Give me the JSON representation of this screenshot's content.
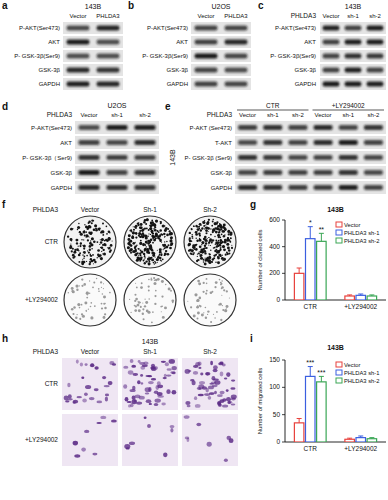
{
  "panels": {
    "a": {
      "letter": "a",
      "cell_line": "143B",
      "lanes": [
        "Vector",
        "PHLDA3"
      ],
      "rows": [
        "P-AKT(Ser473)",
        "AKT",
        "P- GSK-3β(Ser9)",
        "GSK-3β",
        "GAPDH"
      ]
    },
    "b": {
      "letter": "b",
      "cell_line": "U2OS",
      "lanes": [
        "Vector",
        "PHLDA3"
      ],
      "rows": [
        "P-AKT(Ser473)",
        "AKT",
        "P- GSK-3β(Ser9)",
        "GSK-3β",
        "GAPDH"
      ]
    },
    "c": {
      "letter": "c",
      "group": "PHLDA3",
      "cell_line": "143B",
      "lanes": [
        "Vector",
        "sh-1",
        "sh-2"
      ],
      "rows": [
        "P-AKT(Ser473)",
        "AKT",
        "P- GSK-3β(Ser9)",
        "GSK-3β",
        "GAPDH"
      ]
    },
    "d": {
      "letter": "d",
      "group": "PHLDA3",
      "cell_line": "U2OS",
      "lanes": [
        "Vector",
        "sh-1",
        "sh-2"
      ],
      "rows": [
        "P-AKT(Ser473)",
        "AKT",
        "P- GSK-3β（Ser9)",
        "GSK-3β",
        "GAPDH"
      ]
    },
    "e": {
      "letter": "e",
      "group": "PHLDA3",
      "cell_line": "143B",
      "conditions": [
        "CTR",
        "+LY294002"
      ],
      "lanes": [
        "Vector",
        "sh-1",
        "sh-2",
        "Vector",
        "sh-1",
        "sh-2"
      ],
      "rows": [
        "P-AKT (Ser473)",
        "T-AKT",
        "P- GSK-3β (Ser9)",
        "GSK-3β",
        "GAPDH"
      ]
    },
    "f": {
      "letter": "f",
      "group": "PHLDA3",
      "lanes": [
        "Vector",
        "Sh-1",
        "Sh-2"
      ],
      "conditions": [
        "CTR",
        "+LY294002"
      ]
    },
    "h": {
      "letter": "h",
      "group": "PHLDA3",
      "cell_line": "143B",
      "lanes": [
        "Vector",
        "Sh-1",
        "Sh-2"
      ],
      "conditions": [
        "CTR",
        "+LY294002"
      ]
    }
  },
  "chart_data": [
    {
      "panel_label": "g",
      "type": "bar",
      "title": "143B",
      "y_label": "Number of cloned cells",
      "categories": [
        "CTR",
        "+LY294002"
      ],
      "series": [
        {
          "name": "Vector",
          "color": "#e8413c",
          "values": [
            200,
            30
          ],
          "errors": [
            40,
            8
          ]
        },
        {
          "name": "PHLDA3 sh-1",
          "color": "#3b5fe0",
          "values": [
            460,
            35
          ],
          "errors": [
            90,
            10
          ],
          "significance": [
            "*",
            null
          ]
        },
        {
          "name": "PHLDA3 sh-2",
          "color": "#3aa655",
          "values": [
            440,
            30
          ],
          "errors": [
            60,
            8
          ],
          "significance": [
            "**",
            null
          ]
        }
      ],
      "ylim": [
        0,
        600
      ],
      "yticks": [
        0,
        200,
        400,
        600
      ],
      "legend": "upper-right",
      "grid": false
    },
    {
      "panel_label": "i",
      "type": "bar",
      "title": "143B",
      "y_label": "Number of migrated cells",
      "categories": [
        "CTR",
        "+LY294002"
      ],
      "series": [
        {
          "name": "Vector",
          "color": "#e8413c",
          "values": [
            35,
            5
          ],
          "errors": [
            8,
            2
          ]
        },
        {
          "name": "PHLDA3 sh-1",
          "color": "#3b5fe0",
          "values": [
            120,
            8
          ],
          "errors": [
            18,
            3
          ],
          "significance": [
            "***",
            null
          ]
        },
        {
          "name": "PHLDA3 sh-2",
          "color": "#3aa655",
          "values": [
            110,
            6
          ],
          "errors": [
            10,
            2
          ],
          "significance": [
            "***",
            null
          ]
        }
      ],
      "ylim": [
        0,
        150
      ],
      "yticks": [
        0,
        50,
        100,
        150
      ],
      "legend": "upper-right",
      "grid": false
    }
  ]
}
